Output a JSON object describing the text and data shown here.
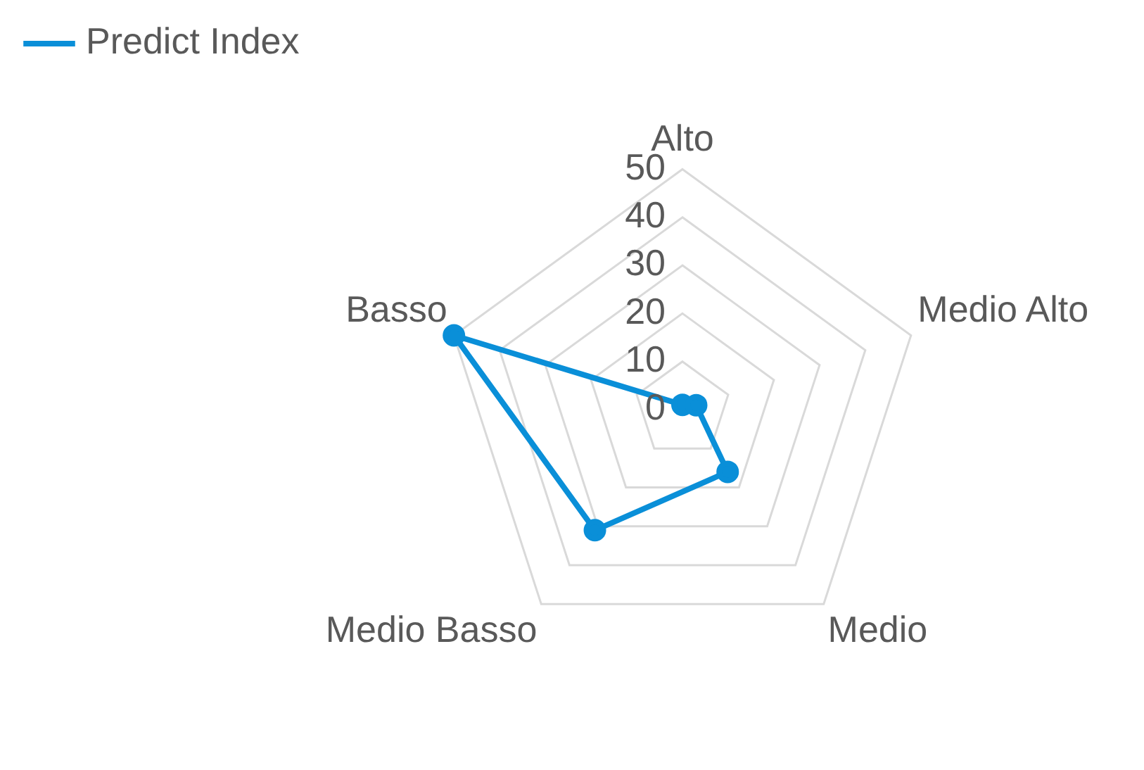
{
  "chart_data": {
    "type": "radar",
    "categories": [
      "Alto",
      "Medio Alto",
      "Medio",
      "Medio Basso",
      "Basso"
    ],
    "series": [
      {
        "name": "Predict Index",
        "color": "#0a8fd8",
        "values": [
          1,
          3,
          16,
          31,
          50
        ]
      }
    ],
    "ylim": [
      0,
      50
    ],
    "yticks": [
      0,
      10,
      20,
      30,
      40,
      50
    ],
    "grid": true,
    "legend": "top left",
    "marker": "circle"
  }
}
